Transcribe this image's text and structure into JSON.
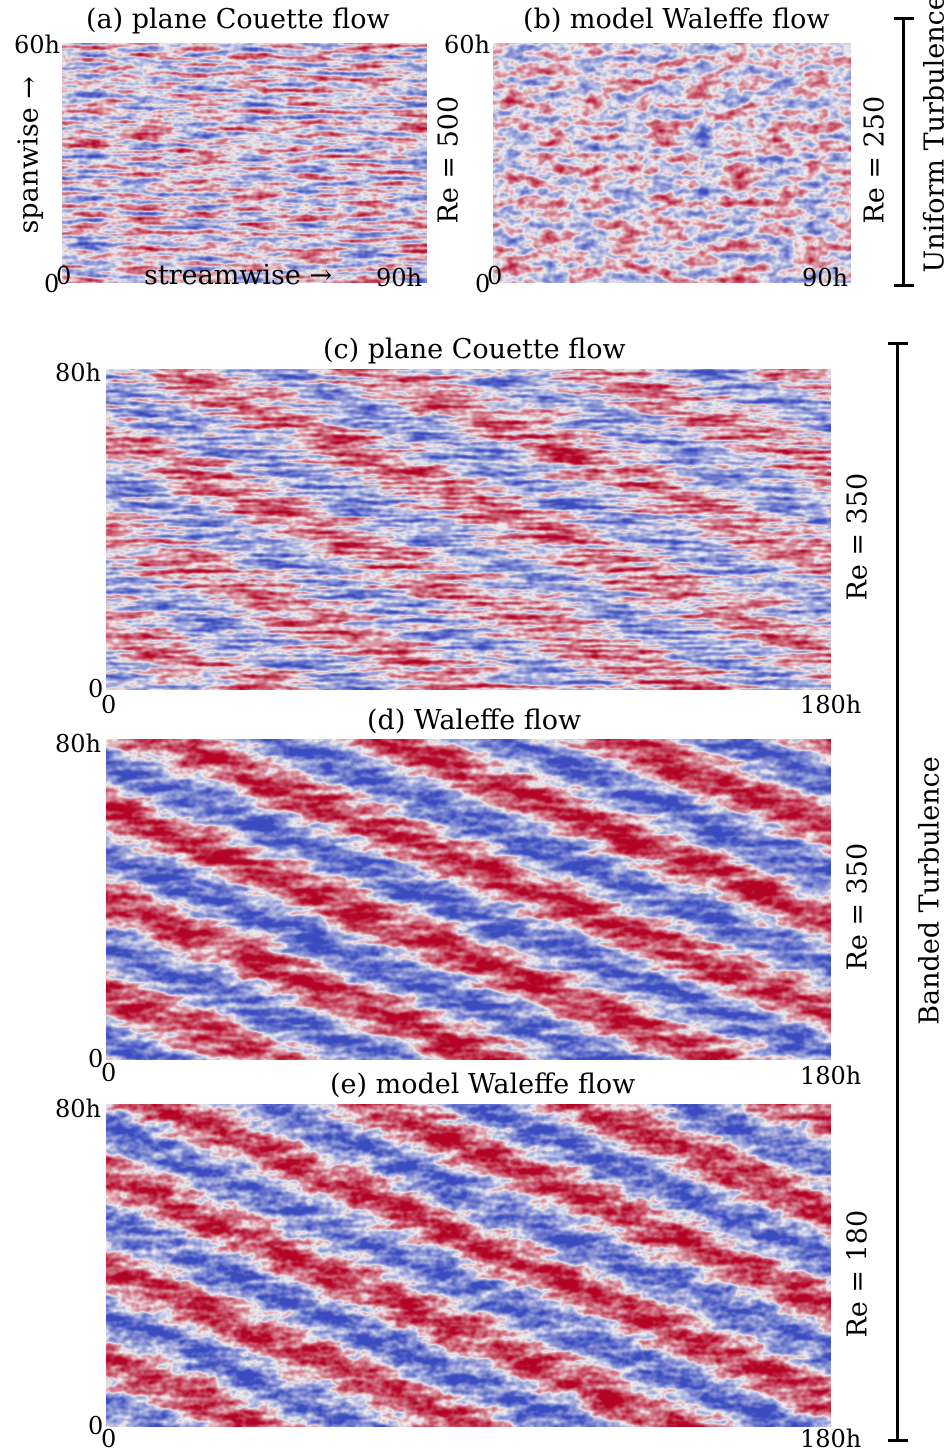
{
  "panels": {
    "a": {
      "title": "(a) plane Couette flow",
      "re": "Re = 500",
      "ymax": "60h",
      "ymin": "0",
      "xmin": "0",
      "xmax": "90h"
    },
    "b": {
      "title": "(b) model Waleffe flow",
      "re": "Re = 250",
      "ymax": "60h",
      "ymin": "0",
      "xmin": "0",
      "xmax": "90h"
    },
    "c": {
      "title": "(c) plane Couette flow",
      "re": "Re = 350",
      "ymax": "80h",
      "ymin": "0",
      "xmin": "0",
      "xmax": "180h"
    },
    "d": {
      "title": "(d) Waleffe flow",
      "re": "Re = 350",
      "ymax": "80h",
      "ymin": "0",
      "xmin": "0",
      "xmax": "180h"
    },
    "e": {
      "title": "(e) model Waleffe flow",
      "re": "Re = 180",
      "ymax": "80h",
      "ymin": "0",
      "xmin": "0",
      "xmax": "180h"
    }
  },
  "axes": {
    "spanwise": "spanwise →",
    "streamwise": "streamwise →"
  },
  "groups": {
    "uniform": "Uniform Turbulence",
    "banded": "Banded Turbulence"
  },
  "colors": {
    "warm": "#b40426",
    "cool": "#3b4cc0",
    "mid": "#f2f2f2"
  }
}
